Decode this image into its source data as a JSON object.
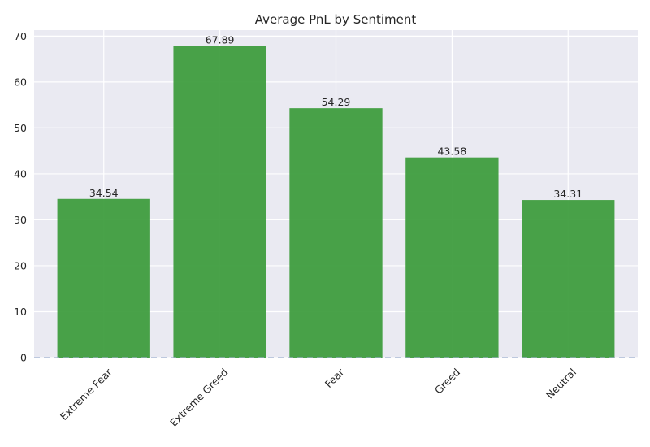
{
  "chart_data": {
    "type": "bar",
    "title": "Average PnL by Sentiment",
    "xlabel": "",
    "ylabel": "",
    "categories": [
      "Extreme Fear",
      "Extreme Greed",
      "Fear",
      "Greed",
      "Neutral"
    ],
    "values": [
      34.54,
      67.89,
      54.29,
      43.58,
      34.31
    ],
    "value_labels": [
      "34.54",
      "67.89",
      "54.29",
      "43.58",
      "34.31"
    ],
    "ylim": [
      0,
      71.3
    ],
    "yticks": [
      0,
      10,
      20,
      30,
      40,
      50,
      60,
      70
    ],
    "grid": true,
    "reference_line": 0,
    "colors": {
      "bar": "#3a9a3a",
      "plot_background": "#eaeaf2",
      "grid": "#ffffff",
      "reference_line": "#9fb0d0"
    }
  }
}
